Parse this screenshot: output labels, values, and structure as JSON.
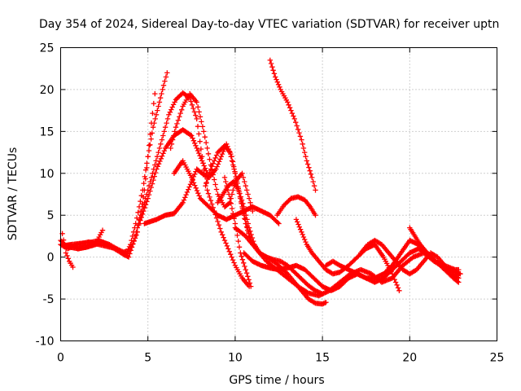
{
  "chart_data": {
    "type": "scatter",
    "title": "Day 354 of 2024, Sidereal Day-to-day VTEC variation (SDTVAR) for receiver uptn",
    "xlabel": "GPS time / hours",
    "ylabel": "SDTVAR / TECUs",
    "xlim": [
      0,
      25
    ],
    "ylim": [
      -10,
      25
    ],
    "xticks": [
      0,
      5,
      10,
      15,
      20,
      25
    ],
    "yticks": [
      -10,
      -5,
      0,
      5,
      10,
      15,
      20,
      25
    ],
    "grid": true,
    "marker": "+",
    "color": "#ff0000",
    "series": [
      {
        "name": "track-01",
        "x": [
          0.0,
          0.3,
          0.6,
          1.0,
          1.4,
          1.8,
          2.2,
          2.6,
          3.0,
          3.4,
          3.7,
          4.0,
          4.3,
          4.7,
          5.0,
          5.3,
          5.6,
          5.9,
          6.1
        ],
        "y": [
          2.0,
          1.4,
          1.5,
          1.6,
          1.7,
          1.8,
          2.0,
          1.6,
          1.1,
          0.6,
          0.2,
          1.5,
          4.0,
          8.0,
          12.0,
          15.5,
          18.0,
          20.5,
          22.0
        ]
      },
      {
        "name": "track-02",
        "x": [
          0.0,
          0.4,
          0.8,
          1.2,
          1.6,
          2.0,
          2.4,
          2.8,
          3.2,
          3.6,
          4.0,
          4.4,
          4.8,
          5.0,
          5.2,
          5.4
        ],
        "y": [
          1.5,
          1.0,
          1.4,
          1.6,
          1.8,
          1.6,
          1.4,
          1.2,
          1.0,
          0.6,
          0.8,
          3.0,
          8.0,
          12.0,
          16.0,
          19.5
        ]
      },
      {
        "name": "track-03",
        "x": [
          0.1,
          0.3,
          0.5,
          0.7
        ],
        "y": [
          2.8,
          0.5,
          -0.5,
          -1.2
        ]
      },
      {
        "name": "track-04",
        "x": [
          0.5,
          1.0,
          1.5,
          2.0,
          2.4,
          2.8,
          3.2,
          3.6,
          3.9,
          4.2,
          4.6,
          5.0,
          5.4,
          5.8,
          6.2,
          6.6,
          7.0,
          7.4,
          7.8,
          8.1,
          8.4,
          8.8,
          9.2,
          9.6,
          10.0,
          10.4,
          10.8
        ],
        "y": [
          1.2,
          1.0,
          1.2,
          1.5,
          1.8,
          1.5,
          1.0,
          0.4,
          0.0,
          2.0,
          5.0,
          8.0,
          11.0,
          14.0,
          17.0,
          18.8,
          19.6,
          19.0,
          16.5,
          12.0,
          8.0,
          5.5,
          3.0,
          1.0,
          -1.0,
          -2.5,
          -3.5
        ]
      },
      {
        "name": "track-05",
        "x": [
          4.5,
          5.0,
          5.5,
          6.0,
          6.5,
          7.0,
          7.5,
          7.8,
          8.1,
          8.4
        ],
        "y": [
          4.0,
          7.0,
          10.5,
          13.0,
          14.5,
          15.2,
          14.5,
          13.0,
          11.5,
          10.0
        ]
      },
      {
        "name": "track-06",
        "x": [
          4.8,
          5.5,
          6.0,
          6.5,
          7.0,
          7.5,
          7.8,
          8.1,
          8.5,
          8.9,
          9.2,
          9.5,
          9.8,
          10.1,
          10.4,
          10.7,
          10.9
        ],
        "y": [
          4.0,
          4.5,
          5.0,
          5.2,
          6.5,
          9.0,
          10.5,
          10.0,
          9.5,
          10.5,
          12.0,
          13.5,
          12.0,
          9.0,
          6.0,
          3.5,
          2.0
        ]
      },
      {
        "name": "track-07",
        "x": [
          6.3,
          6.6,
          7.0,
          7.4,
          7.8,
          8.2,
          8.6,
          9.0,
          9.4,
          9.7,
          10.0,
          10.4,
          10.8,
          11.0
        ],
        "y": [
          13.0,
          15.5,
          18.0,
          19.5,
          18.5,
          15.0,
          11.0,
          7.5,
          6.0,
          6.5,
          9.0,
          10.0,
          7.0,
          5.5
        ]
      },
      {
        "name": "track-08",
        "x": [
          6.5,
          7.0,
          7.5,
          8.0,
          8.5,
          9.0,
          9.5,
          10.0,
          10.5,
          11.0,
          11.5,
          12.0,
          12.5
        ],
        "y": [
          10.0,
          11.5,
          9.5,
          7.0,
          6.0,
          5.0,
          4.5,
          5.0,
          5.5,
          6.0,
          5.5,
          5.0,
          4.0
        ]
      },
      {
        "name": "track-09",
        "x": [
          8.3,
          8.6,
          9.0,
          9.4,
          9.7,
          10.0,
          10.3,
          10.6,
          10.9,
          11.2,
          11.5,
          11.8,
          12.2,
          12.6,
          13.0,
          13.4,
          13.8,
          14.2,
          14.6,
          15.0,
          15.2
        ],
        "y": [
          8.5,
          10.5,
          12.5,
          13.3,
          12.5,
          10.0,
          7.0,
          4.0,
          2.0,
          1.0,
          0.3,
          0.0,
          -0.5,
          -1.2,
          -2.0,
          -3.0,
          -4.0,
          -5.0,
          -5.5,
          -5.6,
          -5.4
        ]
      },
      {
        "name": "track-10",
        "x": [
          9.0,
          9.3,
          9.6,
          9.9,
          10.2,
          10.5,
          10.8,
          11.1,
          11.4,
          11.8,
          12.2,
          12.6,
          13.0,
          13.4,
          13.8,
          14.2,
          14.6,
          15.0
        ],
        "y": [
          6.5,
          7.5,
          8.5,
          9.0,
          8.0,
          6.0,
          3.5,
          1.5,
          0.5,
          0.0,
          -0.3,
          -0.5,
          -1.0,
          -1.8,
          -2.6,
          -3.4,
          -4.0,
          -4.4
        ]
      },
      {
        "name": "track-11",
        "x": [
          9.4,
          9.7,
          10.0,
          10.3,
          10.6,
          10.9
        ],
        "y": [
          9.5,
          7.0,
          4.0,
          0.5,
          -1.5,
          -3.5
        ]
      },
      {
        "name": "track-12",
        "x": [
          10.0,
          10.6,
          11.2,
          11.8,
          12.4,
          13.0,
          13.6,
          14.2,
          14.8,
          15.4,
          16.0,
          16.6,
          17.2,
          17.8,
          18.4,
          19.0,
          19.6,
          20.2,
          20.8,
          21.4,
          22.0,
          22.6,
          22.8
        ],
        "y": [
          3.5,
          2.5,
          1.0,
          -0.5,
          -1.5,
          -2.5,
          -3.5,
          -4.3,
          -4.6,
          -4.0,
          -3.0,
          -2.0,
          -1.5,
          -2.0,
          -3.0,
          -2.5,
          -1.0,
          0.0,
          0.5,
          -0.5,
          -1.0,
          -1.5,
          -1.5
        ]
      },
      {
        "name": "track-13",
        "x": [
          10.5,
          11.0,
          11.5,
          12.0,
          12.5,
          13.0,
          13.5,
          14.0,
          14.5,
          15.0,
          15.5,
          16.0,
          16.5,
          17.0,
          17.5,
          18.0,
          18.5,
          19.0,
          19.5,
          20.0,
          20.5,
          21.0,
          21.5,
          22.0,
          22.5,
          22.8
        ],
        "y": [
          0.5,
          -0.5,
          -1.0,
          -1.3,
          -1.5,
          -1.3,
          -1.0,
          -1.5,
          -2.5,
          -3.5,
          -4.0,
          -3.5,
          -2.5,
          -2.0,
          -2.5,
          -3.0,
          -2.5,
          -1.5,
          -0.5,
          0.5,
          1.0,
          0.5,
          -0.5,
          -1.5,
          -2.5,
          -3.0
        ]
      },
      {
        "name": "track-14",
        "x": [
          12.0,
          12.3,
          12.6,
          13.0,
          13.4,
          13.8,
          14.1,
          14.4,
          14.6
        ],
        "y": [
          23.5,
          21.5,
          20.0,
          18.5,
          16.5,
          14.0,
          11.5,
          9.5,
          8.0
        ]
      },
      {
        "name": "track-15",
        "x": [
          12.4,
          12.8,
          13.2,
          13.6,
          14.0,
          14.3,
          14.6
        ],
        "y": [
          5.0,
          6.2,
          7.0,
          7.2,
          6.8,
          6.0,
          5.0
        ]
      },
      {
        "name": "track-16",
        "x": [
          13.5,
          13.8,
          14.1,
          14.4,
          14.8,
          15.2,
          15.6,
          16.0,
          16.5,
          17.0,
          17.5,
          18.0,
          18.5,
          19.0,
          19.4
        ],
        "y": [
          4.5,
          3.0,
          1.5,
          0.5,
          -0.5,
          -1.5,
          -2.0,
          -1.8,
          -1.0,
          0.0,
          1.0,
          1.5,
          0.0,
          -2.0,
          -4.0
        ]
      },
      {
        "name": "track-17",
        "x": [
          15.2,
          15.6,
          16.0,
          16.5,
          17.0,
          17.5,
          18.0,
          18.5,
          19.0,
          19.5,
          20.0,
          20.5,
          21.0,
          21.5,
          22.0
        ],
        "y": [
          -1.0,
          -0.5,
          -1.0,
          -1.5,
          -2.0,
          -2.5,
          -2.5,
          -2.0,
          -1.0,
          0.5,
          2.0,
          1.5,
          0.5,
          -0.5,
          -1.5
        ]
      },
      {
        "name": "track-18",
        "x": [
          17.2,
          17.6,
          18.0,
          18.4,
          18.8,
          19.2,
          19.6,
          20.0,
          20.4,
          20.8,
          21.2,
          21.6,
          22.0,
          22.4,
          22.8
        ],
        "y": [
          0.5,
          1.5,
          2.0,
          1.5,
          0.5,
          -0.5,
          -1.5,
          -2.0,
          -1.5,
          -0.5,
          0.5,
          0.0,
          -1.0,
          -2.0,
          -2.5
        ]
      },
      {
        "name": "track-19",
        "x": [
          20.0,
          20.3,
          20.6,
          21.0,
          21.4,
          21.8,
          22.2,
          22.6,
          22.9
        ],
        "y": [
          3.5,
          2.5,
          1.5,
          0.5,
          -0.5,
          -1.0,
          -1.5,
          -1.8,
          -2.0
        ]
      },
      {
        "name": "track-20",
        "x": [
          1.0,
          1.5,
          2.0,
          2.4
        ],
        "y": [
          1.0,
          1.2,
          1.6,
          3.2
        ]
      }
    ]
  }
}
